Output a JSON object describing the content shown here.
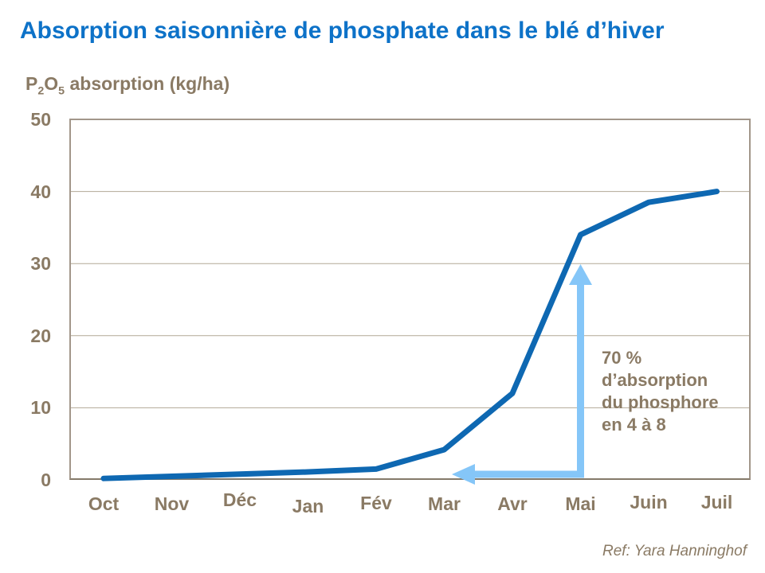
{
  "title": "Absorption saisonnière de phosphate dans le blé d’hiver",
  "y_axis_label": {
    "base1": "P",
    "sub1": "2",
    "base2": "O",
    "sub2": "5",
    "rest": " absorption (kg/ha)"
  },
  "annotation": {
    "text": "70 %\nd’absorption\ndu phosphore\nen 4 à 8"
  },
  "reference": "Ref: Yara Hanninghof",
  "colors": {
    "title_blue": "#0d72c8",
    "line_blue": "#0e68b2",
    "arrow_blue": "#85c6f8",
    "text_brown": "#8a7a64",
    "gridline": "#b2a896",
    "plot_border": "#a2968a",
    "axis_line": "#857a6a"
  },
  "chart_data": {
    "type": "line",
    "title": "Absorption saisonnière de phosphate dans le blé d’hiver",
    "xlabel": "",
    "ylabel": "P2O5 absorption (kg/ha)",
    "categories": [
      "Oct",
      "Nov",
      "Déc",
      "Jan",
      "Fév",
      "Mar",
      "Avr",
      "Mai",
      "Juin",
      "Juil"
    ],
    "values": [
      0.2,
      0.5,
      0.8,
      1.1,
      1.5,
      4.2,
      12,
      34,
      38.5,
      40
    ],
    "ylim": [
      0,
      50
    ],
    "yticks": [
      0,
      10,
      20,
      30,
      40,
      50
    ],
    "grid": "horizontal",
    "legend": "none",
    "line_color": "#0e68b2",
    "annotations": [
      "70 % d’absorption du phosphore en 4 à 8"
    ]
  }
}
